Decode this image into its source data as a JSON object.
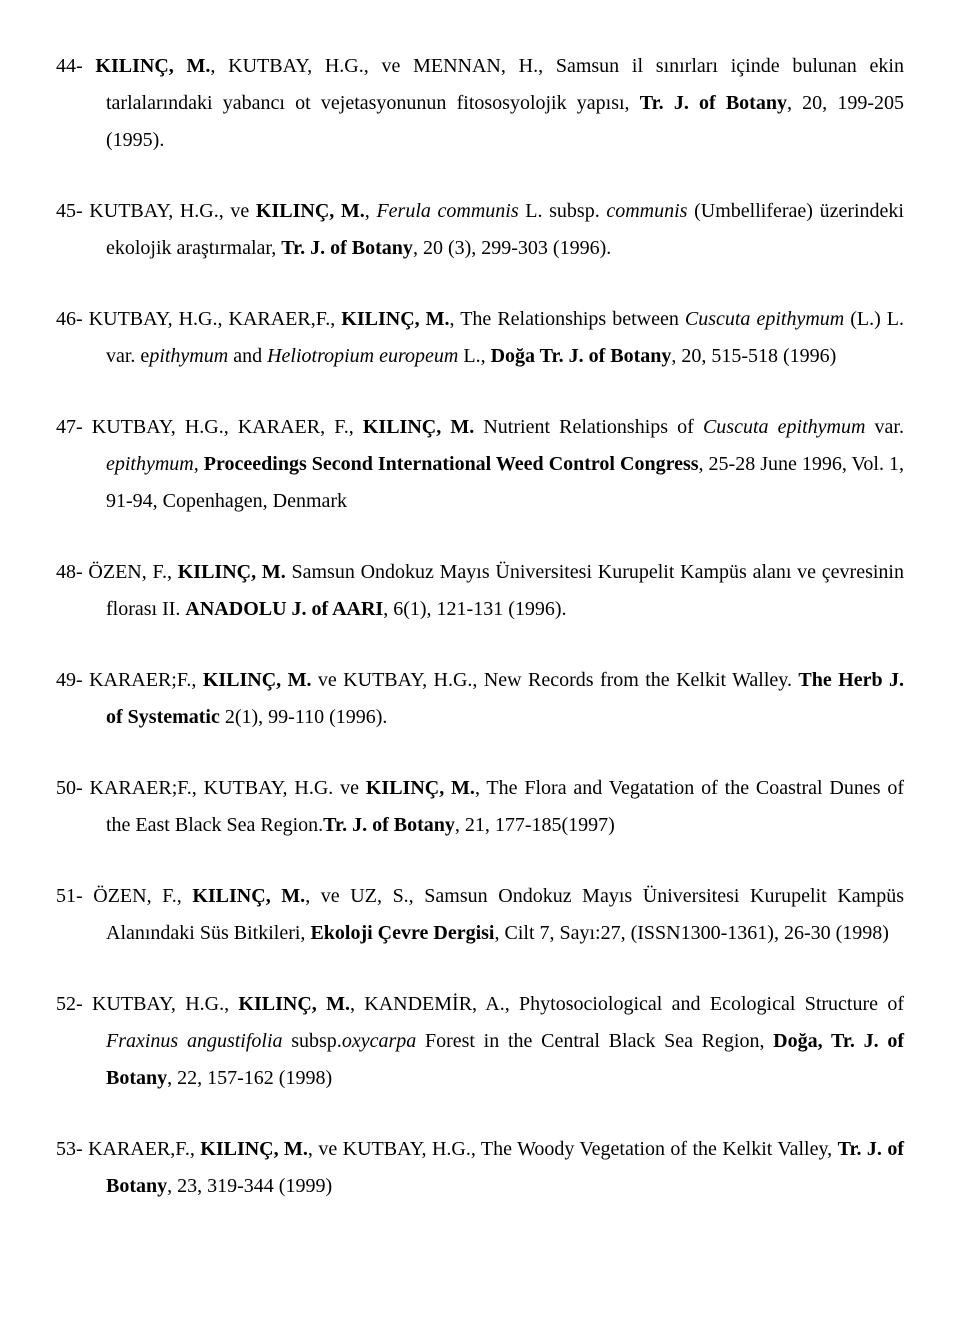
{
  "references": [
    {
      "num": "44",
      "segments": [
        {
          "text": "- "
        },
        {
          "text": "KILINÇ, M.",
          "bold": true
        },
        {
          "text": ", KUTBAY, H.G., ve MENNAN, H., Samsun il sınırları içinde bulunan ekin tarlalarındaki yabancı ot vejetasyonunun fitososyolojik yapısı, "
        },
        {
          "text": "Tr. J. of Botany",
          "bold": true
        },
        {
          "text": ", 20, 199-205 (1995)."
        }
      ]
    },
    {
      "num": "45",
      "segments": [
        {
          "text": "- KUTBAY, H.G., ve "
        },
        {
          "text": "KILINÇ, M.",
          "bold": true
        },
        {
          "text": ", "
        },
        {
          "text": "Ferula communis",
          "italic": true
        },
        {
          "text": " L. subsp. "
        },
        {
          "text": "communis",
          "italic": true
        },
        {
          "text": " (Umbelliferae) üzerindeki ekolojik araştırmalar, "
        },
        {
          "text": "Tr. J. of Botany",
          "bold": true
        },
        {
          "text": ", 20 (3), 299-303 (1996)."
        }
      ]
    },
    {
      "num": "46",
      "segments": [
        {
          "text": "- KUTBAY, H.G., KARAER,F., "
        },
        {
          "text": "KILINÇ, M.",
          "bold": true
        },
        {
          "text": ", The Relationships between "
        },
        {
          "text": "Cuscuta epithymum",
          "italic": true
        },
        {
          "text": " (L.) L. var. e"
        },
        {
          "text": "pithymum",
          "italic": true
        },
        {
          "text": " and "
        },
        {
          "text": "Heliotropium europeum",
          "italic": true
        },
        {
          "text": " L., "
        },
        {
          "text": "Doğa Tr. J. of Botany",
          "bold": true
        },
        {
          "text": ", 20, 515-518 (1996)"
        }
      ]
    },
    {
      "num": "47",
      "segments": [
        {
          "text": "- KUTBAY, H.G., KARAER, F., "
        },
        {
          "text": "KILINÇ, M.",
          "bold": true
        },
        {
          "text": " Nutrient Relationships of "
        },
        {
          "text": "Cuscuta epithymum",
          "italic": true
        },
        {
          "text": " var. "
        },
        {
          "text": "epithymum",
          "italic": true
        },
        {
          "text": ", "
        },
        {
          "text": "Proceedings Second International Weed Control Congress",
          "bold": true
        },
        {
          "text": ", 25-28 June 1996, Vol. 1, 91-94, Copenhagen, Denmark"
        }
      ]
    },
    {
      "num": "48",
      "segments": [
        {
          "text": "- ÖZEN, F., "
        },
        {
          "text": "KILINÇ, M.",
          "bold": true
        },
        {
          "text": " Samsun Ondokuz Mayıs Üniversitesi Kurupelit Kampüs alanı ve çevresinin florası II. "
        },
        {
          "text": "ANADOLU J. of AARI",
          "bold": true
        },
        {
          "text": ", 6(1), 121-131 (1996)."
        }
      ]
    },
    {
      "num": "49",
      "segments": [
        {
          "text": "- KARAER;F., "
        },
        {
          "text": "KILINÇ, M.",
          "bold": true
        },
        {
          "text": " ve KUTBAY, H.G., New Records from the Kelkit Walley. "
        },
        {
          "text": "The Herb J. of Systematic",
          "bold": true
        },
        {
          "text": " 2(1), 99-110 (1996)."
        }
      ]
    },
    {
      "num": "50",
      "segments": [
        {
          "text": "- KARAER;F., KUTBAY, H.G. ve "
        },
        {
          "text": "KILINÇ, M.",
          "bold": true
        },
        {
          "text": ", The Flora and Vegatation of the Coastral Dunes of the East Black Sea Region."
        },
        {
          "text": "Tr. J. of Botany",
          "bold": true
        },
        {
          "text": ", 21, 177-185(1997)"
        }
      ]
    },
    {
      "num": "51",
      "segments": [
        {
          "text": "- ÖZEN, F., "
        },
        {
          "text": "KILINÇ, M.",
          "bold": true
        },
        {
          "text": ", ve UZ, S., Samsun Ondokuz Mayıs Üniversitesi Kurupelit Kampüs Alanındaki Süs Bitkileri, "
        },
        {
          "text": "Ekoloji Çevre Dergisi",
          "bold": true
        },
        {
          "text": ", Cilt 7, Sayı:27, (ISSN1300-1361), 26-30 (1998)"
        }
      ]
    },
    {
      "num": "52",
      "segments": [
        {
          "text": "- KUTBAY, H.G., "
        },
        {
          "text": "KILINÇ, M.",
          "bold": true
        },
        {
          "text": ", KANDEMİR, A., Phytosociological and Ecological Structure of "
        },
        {
          "text": "Fraxinus angustifolia",
          "italic": true
        },
        {
          "text": " subsp."
        },
        {
          "text": "oxycarpa",
          "italic": true
        },
        {
          "text": " Forest in the Central Black Sea Region, "
        },
        {
          "text": "Doğa, Tr. J. of Botany",
          "bold": true
        },
        {
          "text": ", 22, 157-162 (1998)"
        }
      ]
    },
    {
      "num": "53",
      "segments": [
        {
          "text": "- KARAER,F., "
        },
        {
          "text": "KILINÇ, M.",
          "bold": true
        },
        {
          "text": ", ve KUTBAY, H.G., The Woody Vegetation of the Kelkit Valley, "
        },
        {
          "text": "Tr. J. of Botany",
          "bold": true
        },
        {
          "text": ", 23, 319-344 (1999)"
        }
      ]
    }
  ]
}
